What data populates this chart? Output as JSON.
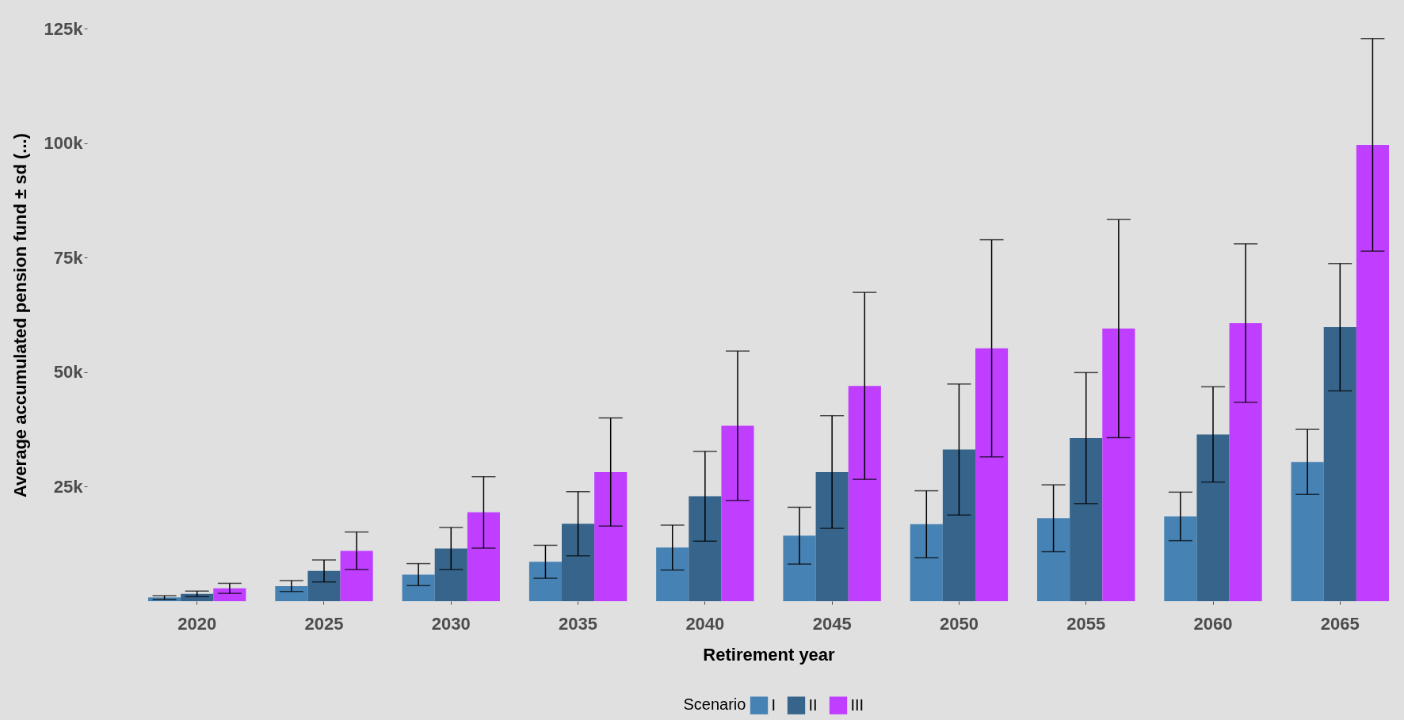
{
  "chart_data": {
    "type": "bar",
    "xlabel": "Retirement year",
    "ylabel": "Average accumulated pension fund ± sd (...)",
    "legend_title": "Scenario",
    "legend": "bottom",
    "categories": [
      "2020",
      "2025",
      "2030",
      "2035",
      "2040",
      "2045",
      "2050",
      "2055",
      "2060",
      "2065"
    ],
    "ylim": [
      0,
      125000
    ],
    "yticks": [
      {
        "value": 25000,
        "label": "25k"
      },
      {
        "value": 50000,
        "label": "50k"
      },
      {
        "value": 75000,
        "label": "75k"
      },
      {
        "value": 100000,
        "label": "100k"
      },
      {
        "value": 125000,
        "label": "125k"
      }
    ],
    "series": [
      {
        "name": "I",
        "color": "#4682b4",
        "values": [
          800,
          3300,
          5800,
          8600,
          11700,
          14300,
          16800,
          18100,
          18500,
          30400
        ],
        "errors": [
          400,
          1200,
          2400,
          3600,
          4900,
          6200,
          7300,
          7300,
          5300,
          7100
        ]
      },
      {
        "name": "II",
        "color": "#36648b",
        "values": [
          1600,
          6600,
          11500,
          16900,
          22900,
          28200,
          33100,
          35600,
          36400,
          59800
        ],
        "errors": [
          600,
          2400,
          4600,
          7000,
          9800,
          12300,
          14300,
          14300,
          10400,
          13900
        ]
      },
      {
        "name": "III",
        "color": "#bf3eff",
        "values": [
          2800,
          11000,
          19400,
          28200,
          38300,
          47000,
          55200,
          59500,
          60700,
          99600
        ],
        "errors": [
          1100,
          4100,
          7800,
          11800,
          16300,
          20400,
          23700,
          23800,
          17300,
          23200
        ]
      }
    ]
  }
}
